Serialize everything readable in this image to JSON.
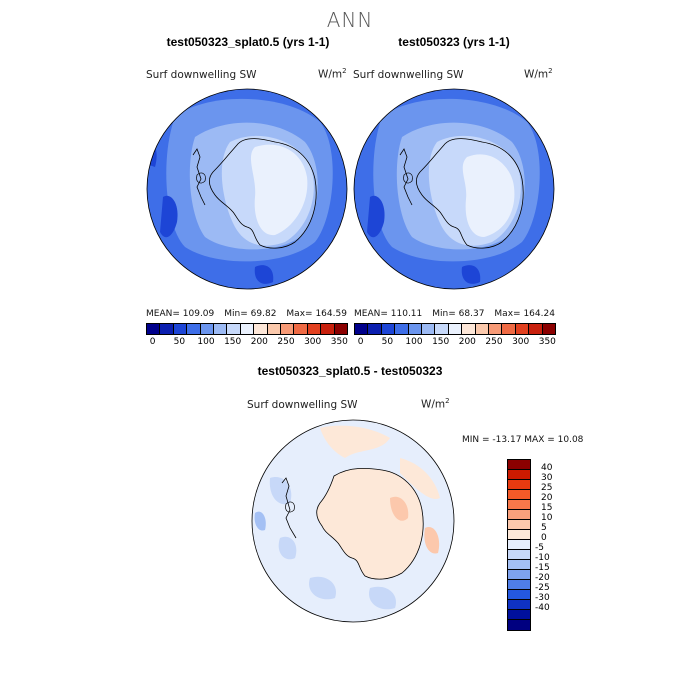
{
  "title": "ANN",
  "panels": [
    {
      "name": "test050323_splat0.5 (yrs 1-1)",
      "variable": "Surf downwelling SW",
      "units_base": "W/m",
      "units_exp": "2",
      "stats": {
        "mean_label": "MEAN=",
        "mean": "109.09",
        "min_label": "Min=",
        "min": "69.82",
        "max_label": "Max=",
        "max": "164.59"
      }
    },
    {
      "name": "test050323 (yrs 1-1)",
      "variable": "Surf downwelling SW",
      "units_base": "W/m",
      "units_exp": "2",
      "stats": {
        "mean_label": "MEAN=",
        "mean": "110.11",
        "min_label": "Min=",
        "min": "68.37",
        "max_label": "Max=",
        "max": "164.24"
      }
    }
  ],
  "colorbar_top": {
    "colors": [
      "#00008b",
      "#0b1fb0",
      "#1d45d6",
      "#3e6ee8",
      "#6b95ee",
      "#9cbaf4",
      "#c7d9fa",
      "#eaf1fd",
      "#fde7d8",
      "#fbc9ac",
      "#f79a76",
      "#ef6a44",
      "#e2401f",
      "#c8200d",
      "#8b0000"
    ],
    "tick_labels": [
      "0",
      "50",
      "100",
      "150",
      "200",
      "250",
      "300",
      "350"
    ]
  },
  "diff_panel": {
    "name": "test050323_splat0.5 - test050323",
    "variable": "Surf downwelling SW",
    "units_base": "W/m",
    "units_exp": "2",
    "min_max": "MIN = -13.17 MAX =  10.08"
  },
  "colorbar_diff": {
    "colors": [
      "#8b0000",
      "#cc1a00",
      "#e83a10",
      "#f45a28",
      "#f8784a",
      "#faa07c",
      "#fcc8ac",
      "#fde8d8",
      "#e6eefc",
      "#c7d8f8",
      "#a4c0f4",
      "#7ea2ee",
      "#4f7ee8",
      "#2458e0",
      "#0f32c4",
      "#00109c",
      "#000080"
    ],
    "labels": [
      "40",
      "30",
      "25",
      "20",
      "15",
      "10",
      "5",
      "0",
      "-5",
      "-10",
      "-15",
      "-20",
      "-25",
      "-30",
      "-40"
    ]
  }
}
